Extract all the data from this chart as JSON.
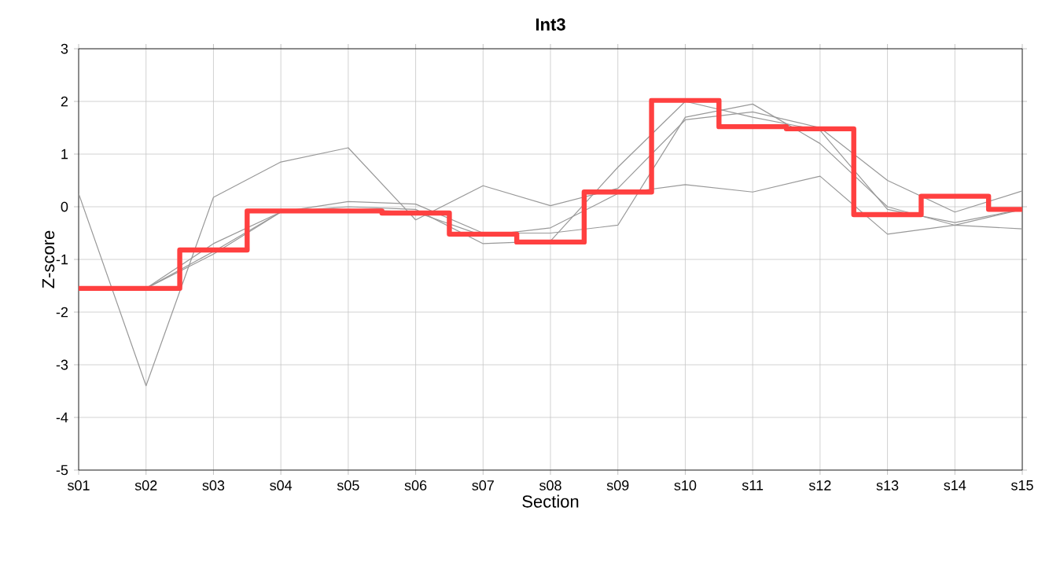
{
  "chart_data": {
    "type": "line",
    "title": "**Int3**",
    "xlabel": "Section",
    "ylabel": "Z-score",
    "categories": [
      "s01",
      "s02",
      "s03",
      "s04",
      "s05",
      "s06",
      "s07",
      "s08",
      "s09",
      "s10",
      "s11",
      "s12",
      "s13",
      "s14",
      "s15"
    ],
    "series": [
      {
        "color": "#999999",
        "values": [
          0.25,
          -3.4,
          0.18,
          0.85,
          1.12,
          -0.25,
          0.4,
          0.02,
          0.35,
          1.65,
          1.8,
          1.5,
          0.5,
          -0.1,
          0.3
        ]
      },
      {
        "color": "#999999",
        "values": [
          -1.55,
          -1.55,
          -0.7,
          -0.1,
          0.1,
          0.05,
          -0.5,
          -0.5,
          -0.35,
          1.7,
          1.95,
          1.2,
          0,
          -0.35,
          -0.05
        ]
      },
      {
        "color": "#999999",
        "values": [
          -1.55,
          -1.55,
          -0.85,
          -0.1,
          0,
          -0.05,
          -0.7,
          -0.65,
          0.75,
          2.0,
          1.7,
          1.45,
          -0.05,
          -0.3,
          -0.05
        ]
      },
      {
        "color": "#999999",
        "values": [
          -1.55,
          -1.55,
          -0.9,
          -0.1,
          -0.05,
          -0.1,
          -0.55,
          -0.4,
          0.25,
          0.42,
          0.28,
          0.58,
          -0.52,
          -0.35,
          -0.42
        ]
      },
      {
        "type": "step",
        "color": "#ff4040",
        "values": [
          -1.55,
          -1.55,
          -0.82,
          -0.08,
          -0.08,
          -0.12,
          -0.52,
          -0.67,
          0.28,
          2.02,
          1.52,
          1.48,
          -0.15,
          0.2,
          -0.05
        ]
      }
    ],
    "ylim": [
      -5,
      3
    ],
    "yticks": [
      -5,
      -4,
      -3,
      -2,
      -1,
      0,
      1,
      2,
      3
    ],
    "grid": true,
    "marker": "none"
  }
}
